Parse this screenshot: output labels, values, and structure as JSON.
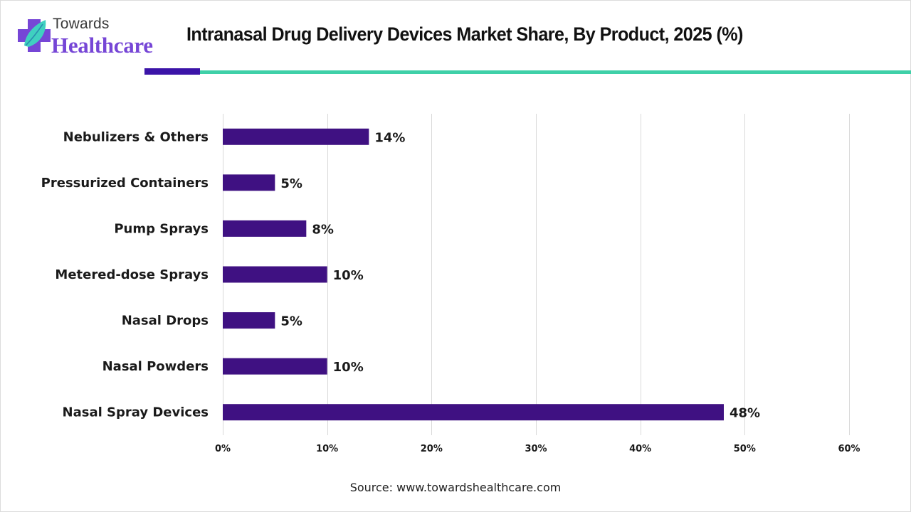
{
  "brand": {
    "name_top": "Towards",
    "name_bottom": "Healthcare",
    "icon": "cross-leaf-logo-icon",
    "colors": {
      "purple": "#7646d6",
      "teal": "#3fd0a8",
      "dark_purple": "#3b14a8"
    }
  },
  "source": "Source: www.towardshealthcare.com",
  "chart_data": {
    "type": "bar",
    "orientation": "horizontal",
    "title": "Intranasal Drug Delivery Devices Market Share, By Product, 2025 (%)",
    "xlabel": "",
    "ylabel": "",
    "categories": [
      "Nebulizers & Others",
      "Pressurized Containers",
      "Pump Sprays",
      "Metered-dose Sprays",
      "Nasal Drops",
      "Nasal Powders",
      "Nasal Spray Devices"
    ],
    "values": [
      14,
      5,
      8,
      10,
      5,
      10,
      48
    ],
    "value_labels": [
      "14%",
      "5%",
      "8%",
      "10%",
      "5%",
      "10%",
      "48%"
    ],
    "xlim": [
      0,
      60
    ],
    "xticks": [
      0,
      10,
      20,
      30,
      40,
      50,
      60
    ],
    "xtick_labels": [
      "0%",
      "10%",
      "20%",
      "30%",
      "40%",
      "50%",
      "60%"
    ],
    "grid": "vertical",
    "legend": "none",
    "bar_color": "#3f1182"
  }
}
